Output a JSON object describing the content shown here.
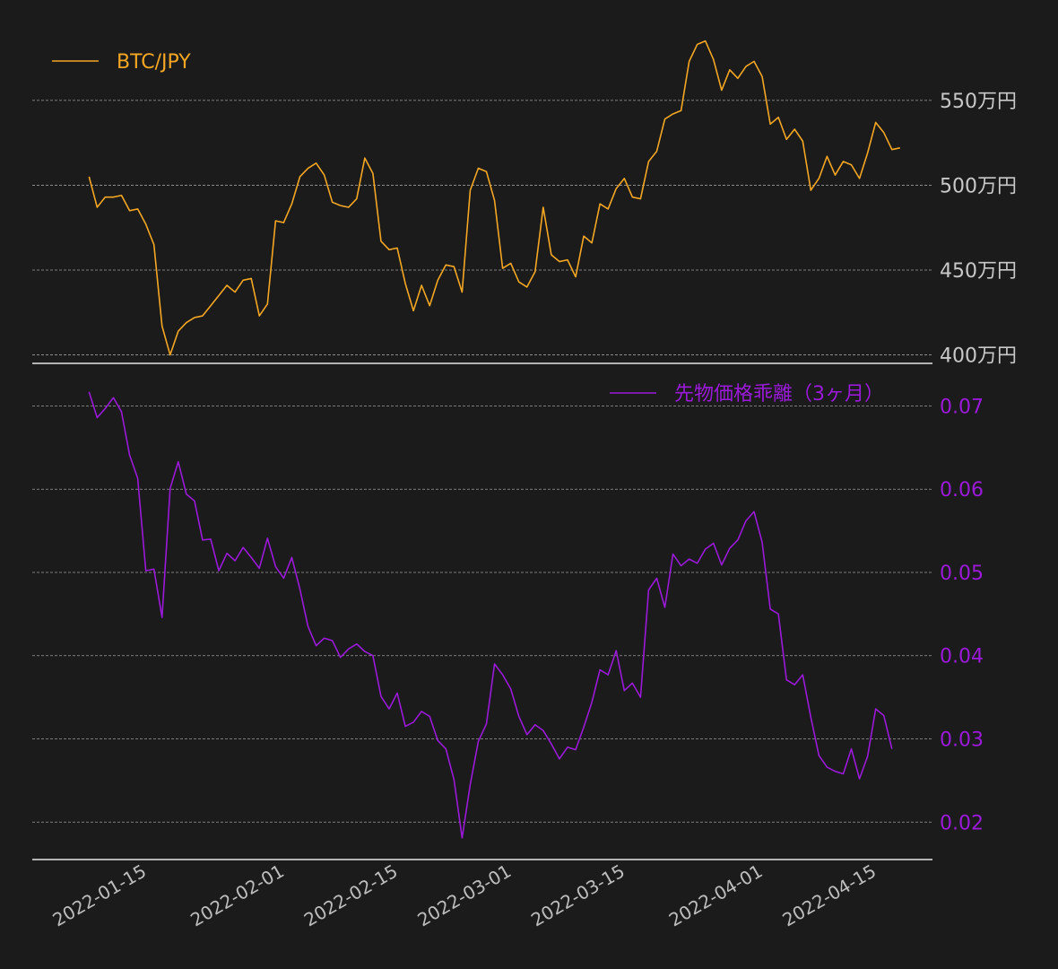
{
  "chart_data": [
    {
      "type": "line",
      "series": [
        {
          "name": "BTC/JPY",
          "color": "#f5a623",
          "points": [
            [
              "2022-01-08",
              505
            ],
            [
              "2022-01-09",
              487
            ],
            [
              "2022-01-10",
              493
            ],
            [
              "2022-01-11",
              493
            ],
            [
              "2022-01-12",
              494
            ],
            [
              "2022-01-13",
              485
            ],
            [
              "2022-01-14",
              486
            ],
            [
              "2022-01-15",
              477
            ],
            [
              "2022-01-16",
              465
            ],
            [
              "2022-01-17",
              417
            ],
            [
              "2022-01-18",
              400
            ],
            [
              "2022-01-19",
              414
            ],
            [
              "2022-01-20",
              419
            ],
            [
              "2022-01-21",
              422
            ],
            [
              "2022-01-22",
              423
            ],
            [
              "2022-01-23",
              429
            ],
            [
              "2022-01-24",
              435
            ],
            [
              "2022-01-25",
              441
            ],
            [
              "2022-01-26",
              437
            ],
            [
              "2022-01-27",
              444
            ],
            [
              "2022-01-28",
              445
            ],
            [
              "2022-01-29",
              423
            ],
            [
              "2022-01-30",
              430
            ],
            [
              "2022-01-31",
              479
            ],
            [
              "2022-02-01",
              478
            ],
            [
              "2022-02-02",
              489
            ],
            [
              "2022-02-03",
              505
            ],
            [
              "2022-02-04",
              510
            ],
            [
              "2022-02-05",
              513
            ],
            [
              "2022-02-06",
              506
            ],
            [
              "2022-02-07",
              490
            ],
            [
              "2022-02-08",
              488
            ],
            [
              "2022-02-09",
              487
            ],
            [
              "2022-02-10",
              492
            ],
            [
              "2022-02-11",
              516
            ],
            [
              "2022-02-12",
              507
            ],
            [
              "2022-02-13",
              467
            ],
            [
              "2022-02-14",
              462
            ],
            [
              "2022-02-15",
              463
            ],
            [
              "2022-02-16",
              442
            ],
            [
              "2022-02-17",
              426
            ],
            [
              "2022-02-18",
              441
            ],
            [
              "2022-02-19",
              429
            ],
            [
              "2022-02-20",
              444
            ],
            [
              "2022-02-21",
              453
            ],
            [
              "2022-02-22",
              452
            ],
            [
              "2022-02-23",
              437
            ],
            [
              "2022-02-24",
              497
            ],
            [
              "2022-02-25",
              510
            ],
            [
              "2022-02-26",
              508
            ],
            [
              "2022-02-27",
              491
            ],
            [
              "2022-02-28",
              451
            ],
            [
              "2022-03-01",
              454
            ],
            [
              "2022-03-02",
              443
            ],
            [
              "2022-03-03",
              440
            ],
            [
              "2022-03-04",
              449
            ],
            [
              "2022-03-05",
              487
            ],
            [
              "2022-03-06",
              459
            ],
            [
              "2022-03-07",
              455
            ],
            [
              "2022-03-08",
              456
            ],
            [
              "2022-03-09",
              446
            ],
            [
              "2022-03-10",
              470
            ],
            [
              "2022-03-11",
              466
            ],
            [
              "2022-03-12",
              489
            ],
            [
              "2022-03-13",
              486
            ],
            [
              "2022-03-14",
              498
            ],
            [
              "2022-03-15",
              504
            ],
            [
              "2022-03-16",
              493
            ],
            [
              "2022-03-17",
              492
            ],
            [
              "2022-03-18",
              514
            ],
            [
              "2022-03-19",
              520
            ],
            [
              "2022-03-20",
              539
            ],
            [
              "2022-03-21",
              542
            ],
            [
              "2022-03-22",
              544
            ],
            [
              "2022-03-23",
              573
            ],
            [
              "2022-03-24",
              583
            ],
            [
              "2022-03-25",
              585
            ],
            [
              "2022-03-26",
              574
            ],
            [
              "2022-03-27",
              556
            ],
            [
              "2022-03-28",
              568
            ],
            [
              "2022-03-29",
              563
            ],
            [
              "2022-03-30",
              570
            ],
            [
              "2022-03-31",
              573
            ],
            [
              "2022-04-01",
              564
            ],
            [
              "2022-04-02",
              536
            ],
            [
              "2022-04-03",
              540
            ],
            [
              "2022-04-04",
              527
            ],
            [
              "2022-04-05",
              533
            ],
            [
              "2022-04-06",
              526
            ],
            [
              "2022-04-07",
              497
            ],
            [
              "2022-04-08",
              504
            ],
            [
              "2022-04-09",
              517
            ],
            [
              "2022-04-10",
              506
            ],
            [
              "2022-04-11",
              514
            ],
            [
              "2022-04-12",
              512
            ],
            [
              "2022-04-13",
              504
            ],
            [
              "2022-04-14",
              519
            ],
            [
              "2022-04-15",
              537
            ],
            [
              "2022-04-16",
              531
            ],
            [
              "2022-04-17",
              521
            ],
            [
              "2022-04-18",
              522
            ]
          ]
        }
      ],
      "ylim": [
        395,
        588
      ],
      "yticks": [
        400,
        450,
        500,
        550
      ],
      "ytick_labels": [
        "400万円",
        "450万円",
        "500万円",
        "550万円"
      ],
      "ytick_color": "#c8c8c8",
      "legend_position": "top-left",
      "grid": true
    },
    {
      "type": "line",
      "series": [
        {
          "name": "先物価格乖離（3ヶ月）",
          "color": "#9b19d9",
          "points": [
            [
              "2022-01-08",
              0.0717
            ],
            [
              "2022-01-09",
              0.0686
            ],
            [
              "2022-01-10",
              0.0697
            ],
            [
              "2022-01-11",
              0.071
            ],
            [
              "2022-01-12",
              0.0693
            ],
            [
              "2022-01-13",
              0.0641
            ],
            [
              "2022-01-14",
              0.0613
            ],
            [
              "2022-01-15",
              0.0502
            ],
            [
              "2022-01-16",
              0.0504
            ],
            [
              "2022-01-17",
              0.0446
            ],
            [
              "2022-01-18",
              0.0601
            ],
            [
              "2022-01-19",
              0.0633
            ],
            [
              "2022-01-20",
              0.0594
            ],
            [
              "2022-01-21",
              0.0586
            ],
            [
              "2022-01-22",
              0.0539
            ],
            [
              "2022-01-23",
              0.054
            ],
            [
              "2022-01-24",
              0.0502
            ],
            [
              "2022-01-25",
              0.0523
            ],
            [
              "2022-01-26",
              0.0514
            ],
            [
              "2022-01-27",
              0.053
            ],
            [
              "2022-01-28",
              0.0518
            ],
            [
              "2022-01-29",
              0.0505
            ],
            [
              "2022-01-30",
              0.0541
            ],
            [
              "2022-01-31",
              0.0507
            ],
            [
              "2022-02-01",
              0.0493
            ],
            [
              "2022-02-02",
              0.0518
            ],
            [
              "2022-02-03",
              0.048
            ],
            [
              "2022-02-04",
              0.0435
            ],
            [
              "2022-02-05",
              0.0412
            ],
            [
              "2022-02-06",
              0.0421
            ],
            [
              "2022-02-07",
              0.0418
            ],
            [
              "2022-02-08",
              0.0398
            ],
            [
              "2022-02-09",
              0.0408
            ],
            [
              "2022-02-10",
              0.0414
            ],
            [
              "2022-02-11",
              0.0405
            ],
            [
              "2022-02-12",
              0.04
            ],
            [
              "2022-02-13",
              0.0351
            ],
            [
              "2022-02-14",
              0.0336
            ],
            [
              "2022-02-15",
              0.0355
            ],
            [
              "2022-02-16",
              0.0315
            ],
            [
              "2022-02-17",
              0.032
            ],
            [
              "2022-02-18",
              0.0333
            ],
            [
              "2022-02-19",
              0.0327
            ],
            [
              "2022-02-20",
              0.0298
            ],
            [
              "2022-02-21",
              0.0288
            ],
            [
              "2022-02-22",
              0.0251
            ],
            [
              "2022-02-23",
              0.0181
            ],
            [
              "2022-02-24",
              0.0245
            ],
            [
              "2022-02-25",
              0.0297
            ],
            [
              "2022-02-26",
              0.0318
            ],
            [
              "2022-02-27",
              0.039
            ],
            [
              "2022-02-28",
              0.0377
            ],
            [
              "2022-03-01",
              0.036
            ],
            [
              "2022-03-02",
              0.0327
            ],
            [
              "2022-03-03",
              0.0305
            ],
            [
              "2022-03-04",
              0.0317
            ],
            [
              "2022-03-05",
              0.031
            ],
            [
              "2022-03-06",
              0.0294
            ],
            [
              "2022-03-07",
              0.0276
            ],
            [
              "2022-03-08",
              0.029
            ],
            [
              "2022-03-09",
              0.0287
            ],
            [
              "2022-03-10",
              0.0314
            ],
            [
              "2022-03-11",
              0.0344
            ],
            [
              "2022-03-12",
              0.0383
            ],
            [
              "2022-03-13",
              0.0377
            ],
            [
              "2022-03-14",
              0.0406
            ],
            [
              "2022-03-15",
              0.0358
            ],
            [
              "2022-03-16",
              0.0367
            ],
            [
              "2022-03-17",
              0.035
            ],
            [
              "2022-03-18",
              0.0479
            ],
            [
              "2022-03-19",
              0.0493
            ],
            [
              "2022-03-20",
              0.0458
            ],
            [
              "2022-03-21",
              0.0522
            ],
            [
              "2022-03-22",
              0.0508
            ],
            [
              "2022-03-23",
              0.0516
            ],
            [
              "2022-03-24",
              0.0511
            ],
            [
              "2022-03-25",
              0.0528
            ],
            [
              "2022-03-26",
              0.0535
            ],
            [
              "2022-03-27",
              0.0509
            ],
            [
              "2022-03-28",
              0.0529
            ],
            [
              "2022-03-29",
              0.0539
            ],
            [
              "2022-03-30",
              0.0562
            ],
            [
              "2022-03-31",
              0.0573
            ],
            [
              "2022-04-01",
              0.0536
            ],
            [
              "2022-04-02",
              0.0456
            ],
            [
              "2022-04-03",
              0.045
            ],
            [
              "2022-04-04",
              0.0371
            ],
            [
              "2022-04-05",
              0.0365
            ],
            [
              "2022-04-06",
              0.0377
            ],
            [
              "2022-04-07",
              0.0326
            ],
            [
              "2022-04-08",
              0.028
            ],
            [
              "2022-04-09",
              0.0266
            ],
            [
              "2022-04-10",
              0.0261
            ],
            [
              "2022-04-11",
              0.0258
            ],
            [
              "2022-04-12",
              0.0288
            ],
            [
              "2022-04-13",
              0.0252
            ],
            [
              "2022-04-14",
              0.0279
            ],
            [
              "2022-04-15",
              0.0336
            ],
            [
              "2022-04-16",
              0.0328
            ],
            [
              "2022-04-17",
              0.0288
            ]
          ]
        }
      ],
      "ylim": [
        0.0155,
        0.0735
      ],
      "yticks": [
        0.02,
        0.03,
        0.04,
        0.05,
        0.06,
        0.07
      ],
      "ytick_labels": [
        "0.02",
        "0.03",
        "0.04",
        "0.05",
        "0.06",
        "0.07"
      ],
      "ytick_color": "#9b19d9",
      "legend_position": "top-right",
      "grid": true
    }
  ],
  "x_axis": {
    "range": [
      "2022-01-01",
      "2022-04-22"
    ],
    "ticks": [
      "2022-01-15",
      "2022-02-01",
      "2022-02-15",
      "2022-03-01",
      "2022-03-15",
      "2022-04-01",
      "2022-04-15"
    ]
  }
}
